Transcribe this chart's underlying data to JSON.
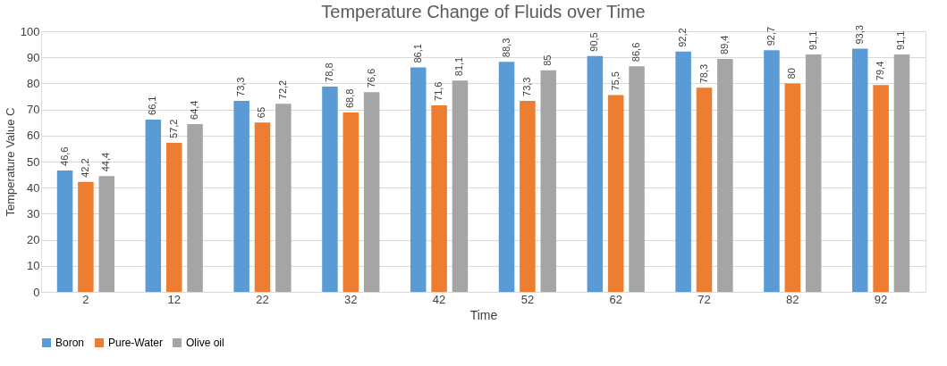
{
  "chart_data": {
    "type": "bar",
    "title": "Temperature Change of Fluids over Time",
    "xlabel": "Time",
    "ylabel": "Temperature Value C",
    "categories": [
      "2",
      "12",
      "22",
      "32",
      "42",
      "52",
      "62",
      "72",
      "82",
      "92"
    ],
    "series": [
      {
        "name": "Boron",
        "color": "#5b9bd5",
        "values": [
          46.6,
          66.1,
          73.3,
          78.8,
          86.1,
          88.3,
          90.5,
          92.2,
          92.7,
          93.3
        ],
        "value_labels": [
          "46,6",
          "66,1",
          "73,3",
          "78,8",
          "86,1",
          "88,3",
          "90,5",
          "92,2",
          "92,7",
          "93,3"
        ]
      },
      {
        "name": "Pure-Water",
        "color": "#ed7d31",
        "values": [
          42.2,
          57.2,
          65,
          68.8,
          71.6,
          73.3,
          75.5,
          78.3,
          80,
          79.4
        ],
        "value_labels": [
          "42,2",
          "57,2",
          "65",
          "68,8",
          "71,6",
          "73,3",
          "75,5",
          "78,3",
          "80",
          "79,4"
        ]
      },
      {
        "name": "Olive oil",
        "color": "#a5a5a5",
        "values": [
          44.4,
          64.4,
          72.2,
          76.6,
          81.1,
          85,
          86.6,
          89.4,
          91.1,
          91.1
        ],
        "value_labels": [
          "44,4",
          "64,4",
          "72,2",
          "76,6",
          "81,1",
          "85",
          "86,6",
          "89,4",
          "91,1",
          "91,1"
        ]
      }
    ],
    "ylim": [
      0,
      100
    ],
    "yticks": [
      0,
      10,
      20,
      30,
      40,
      50,
      60,
      70,
      80,
      90,
      100
    ],
    "grid": "y",
    "legend": "bottom"
  }
}
